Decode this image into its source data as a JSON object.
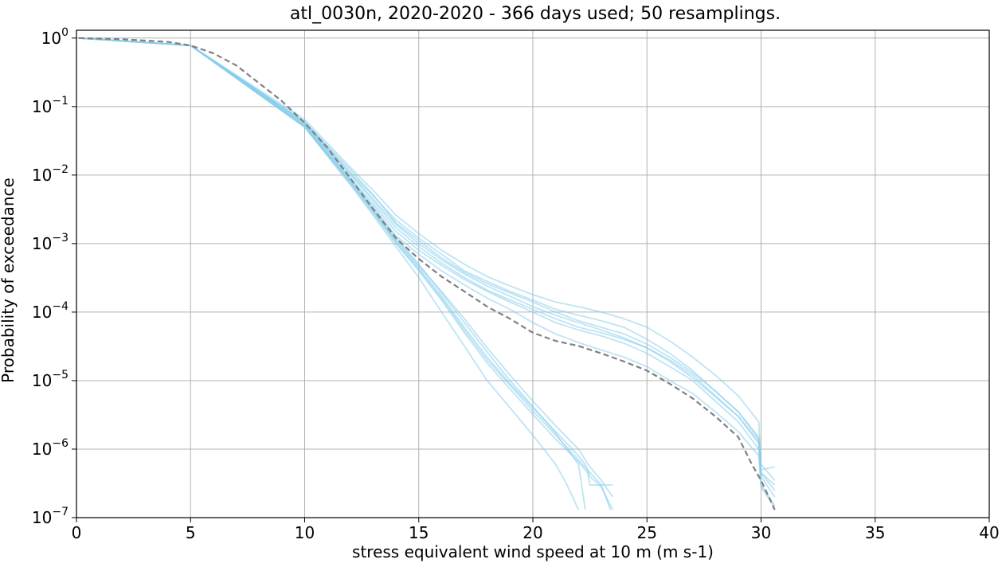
{
  "chart_data": {
    "type": "line",
    "title": "atl_0030n, 2020-2020 - 366 days used; 50 resamplings.",
    "xlabel": "stress equivalent wind speed at 10 m (m s-1)",
    "ylabel": "Probability of exceedance",
    "xlim": [
      0,
      40
    ],
    "ylim": [
      1e-07,
      1.3
    ],
    "yscale": "log",
    "grid": true,
    "x_ticks": [
      0,
      5,
      10,
      15,
      20,
      25,
      30,
      35,
      40
    ],
    "x_tick_labels": [
      "0",
      "5",
      "10",
      "15",
      "20",
      "25",
      "30",
      "35",
      "40"
    ],
    "y_ticks": [
      {
        "value": 1.0,
        "base": "10",
        "exp": "0"
      },
      {
        "value": 0.1,
        "base": "10",
        "exp": "−1"
      },
      {
        "value": 0.01,
        "base": "10",
        "exp": "−2"
      },
      {
        "value": 0.001,
        "base": "10",
        "exp": "−3"
      },
      {
        "value": 0.0001,
        "base": "10",
        "exp": "−4"
      },
      {
        "value": 1e-05,
        "base": "10",
        "exp": "−5"
      },
      {
        "value": 1e-06,
        "base": "10",
        "exp": "−6"
      },
      {
        "value": 1e-07,
        "base": "10",
        "exp": "−7"
      }
    ],
    "colors": {
      "resample": "#87ceeb",
      "mean": "#808080"
    },
    "mean_curve": {
      "style": "dashed",
      "x": [
        0.1,
        2,
        4,
        5,
        6,
        7,
        8,
        9,
        10,
        11,
        12,
        13,
        14,
        15,
        16,
        17,
        18,
        19,
        20,
        21,
        22,
        23,
        24,
        25,
        26,
        27,
        28,
        29,
        29.6,
        30.0,
        30.6
      ],
      "y": [
        1.0,
        0.96,
        0.88,
        0.78,
        0.6,
        0.4,
        0.22,
        0.12,
        0.058,
        0.025,
        0.009,
        0.0032,
        0.0012,
        0.0006,
        0.00033,
        0.0002,
        0.00012,
        8e-05,
        5e-05,
        3.8e-05,
        3.2e-05,
        2.5e-05,
        1.9e-05,
        1.4e-05,
        9e-06,
        5.5e-06,
        3e-06,
        1.5e-06,
        6e-07,
        3.5e-07,
        1.3e-07
      ]
    },
    "series": [
      {
        "x": [
          0.1,
          5,
          10,
          12,
          13,
          14,
          15,
          16,
          17,
          18,
          19,
          20,
          21,
          22,
          23,
          24,
          25,
          26,
          27,
          28,
          29,
          29.9,
          30,
          30.6
        ],
        "y": [
          1.0,
          0.78,
          0.06,
          0.011,
          0.005,
          0.0022,
          0.0012,
          0.0007,
          0.0004,
          0.00028,
          0.0002,
          0.00015,
          0.00011,
          9e-05,
          7.5e-05,
          6e-05,
          4e-05,
          2.5e-05,
          1.4e-05,
          7e-06,
          3.5e-06,
          1.5e-06,
          4.5e-07,
          2.5e-07
        ]
      },
      {
        "x": [
          0.1,
          5,
          10,
          12,
          13,
          14,
          15,
          16,
          17,
          18,
          19,
          20,
          21,
          22,
          23,
          24,
          25,
          26,
          27,
          28,
          29,
          29.9,
          30,
          30.6
        ],
        "y": [
          1.0,
          0.78,
          0.065,
          0.013,
          0.006,
          0.0026,
          0.0014,
          0.0008,
          0.0005,
          0.00033,
          0.00024,
          0.00018,
          0.00014,
          0.00012,
          0.0001,
          8e-05,
          6e-05,
          3.8e-05,
          2.2e-05,
          1.2e-05,
          6e-06,
          2.5e-06,
          6e-07,
          3.5e-07
        ]
      },
      {
        "x": [
          0.1,
          5,
          10,
          12,
          13,
          14,
          15,
          16,
          17,
          18,
          19,
          20,
          21,
          22,
          23,
          24,
          25,
          26,
          27,
          28,
          29,
          29.9,
          30,
          30.6
        ],
        "y": [
          1.0,
          0.78,
          0.055,
          0.009,
          0.0038,
          0.0015,
          0.0008,
          0.00048,
          0.0003,
          0.0002,
          0.00014,
          0.0001,
          7e-05,
          5.5e-05,
          4.5e-05,
          3.5e-05,
          2.5e-05,
          1.6e-05,
          1e-05,
          5e-06,
          2.5e-06,
          1e-06,
          3e-07,
          1.5e-07
        ]
      },
      {
        "x": [
          0.1,
          5,
          10,
          12,
          13,
          14,
          15,
          16,
          17,
          18,
          19,
          20,
          21,
          22,
          23,
          24,
          25,
          26,
          27,
          28,
          29,
          29.9,
          30,
          30.6
        ],
        "y": [
          1.0,
          0.78,
          0.057,
          0.01,
          0.0042,
          0.0017,
          0.0009,
          0.00052,
          0.00032,
          0.00021,
          0.00015,
          0.00011,
          8e-05,
          6e-05,
          5e-05,
          4e-05,
          3e-05,
          2e-05,
          1.2e-05,
          6e-06,
          3e-06,
          1.3e-06,
          4e-07,
          2e-07
        ]
      },
      {
        "x": [
          0.1,
          5,
          10,
          12,
          13,
          14,
          15,
          16,
          17,
          18,
          19,
          20,
          21,
          22,
          23,
          24,
          25,
          26,
          27,
          28,
          29,
          29.9,
          30,
          30.6
        ],
        "y": [
          1.0,
          0.78,
          0.058,
          0.009,
          0.0035,
          0.0013,
          0.0007,
          0.0004,
          0.00025,
          0.00016,
          0.00011,
          7e-05,
          4.8e-05,
          3.6e-05,
          2.8e-05,
          2.2e-05,
          1.6e-05,
          1e-05,
          6.5e-06,
          3.5e-06,
          1.8e-06,
          8e-07,
          2.8e-07,
          1.4e-07
        ]
      },
      {
        "x": [
          0.1,
          5,
          10,
          12,
          13,
          14,
          15,
          16,
          17,
          18,
          19,
          20,
          21,
          22,
          23,
          24,
          25,
          26,
          27,
          28,
          29,
          29.9,
          30,
          30.6
        ],
        "y": [
          1.0,
          0.78,
          0.06,
          0.012,
          0.0052,
          0.002,
          0.0011,
          0.00062,
          0.00038,
          0.00026,
          0.00019,
          0.00014,
          0.0001,
          7.5e-05,
          6e-05,
          4.8e-05,
          3.4e-05,
          2.2e-05,
          1.3e-05,
          7e-06,
          3.5e-06,
          1.4e-06,
          4.5e-07,
          3e-07
        ]
      },
      {
        "x": [
          0.1,
          5,
          10,
          12,
          13,
          14,
          15,
          16,
          17,
          18,
          19,
          20,
          21,
          22,
          22.3,
          22.5,
          23,
          23.5
        ],
        "y": [
          1.0,
          0.78,
          0.052,
          0.008,
          0.003,
          0.0011,
          0.00045,
          0.00017,
          6e-05,
          2.2e-05,
          9e-06,
          4e-06,
          1.8e-06,
          8e-07,
          6e-07,
          4e-07,
          2.8e-07,
          1.3e-07
        ]
      },
      {
        "x": [
          0.1,
          5,
          10,
          12,
          13,
          14,
          15,
          16,
          17,
          18,
          19,
          20,
          21,
          22,
          22.4,
          22.5,
          23.5
        ],
        "y": [
          1.0,
          0.78,
          0.05,
          0.0075,
          0.0028,
          0.001,
          0.0004,
          0.00015,
          5e-05,
          1.8e-05,
          7.5e-06,
          3.2e-06,
          1.4e-06,
          6.5e-07,
          4.5e-07,
          3e-07,
          3e-07
        ]
      },
      {
        "x": [
          0.1,
          5,
          10,
          12,
          13,
          14,
          15,
          16,
          17,
          18,
          19,
          20,
          21,
          22,
          22.5,
          23.0,
          23.5
        ],
        "y": [
          1.0,
          0.78,
          0.053,
          0.0082,
          0.0031,
          0.00115,
          0.00048,
          0.0002,
          8e-05,
          3e-05,
          1.2e-05,
          5e-06,
          2.2e-06,
          1e-06,
          5.5e-07,
          3.5e-07,
          2e-07
        ]
      },
      {
        "x": [
          0.1,
          5,
          10,
          12,
          13,
          14,
          15,
          16,
          17,
          18,
          19,
          20,
          21,
          21.5,
          22.0
        ],
        "y": [
          1.0,
          0.78,
          0.05,
          0.0072,
          0.0026,
          0.0009,
          0.00032,
          0.0001,
          3.2e-05,
          1e-05,
          4e-06,
          1.6e-06,
          6e-07,
          3e-07,
          1.3e-07
        ]
      },
      {
        "x": [
          0.1,
          5,
          10,
          12,
          13,
          14,
          15,
          16,
          17,
          18,
          19,
          20,
          21,
          22,
          22.3
        ],
        "y": [
          1.0,
          0.78,
          0.054,
          0.0085,
          0.0033,
          0.00125,
          0.0005,
          0.00019,
          7e-05,
          2.6e-05,
          1e-05,
          4.2e-06,
          1.7e-06,
          6e-07,
          1.3e-07
        ]
      },
      {
        "x": [
          0.1,
          5,
          10,
          12,
          13,
          14,
          15,
          16,
          17,
          18,
          19,
          20,
          21,
          22,
          23,
          24,
          25,
          26,
          27,
          28,
          29,
          29.9,
          30,
          30.6
        ],
        "y": [
          1.0,
          0.78,
          0.059,
          0.0105,
          0.0045,
          0.0019,
          0.001,
          0.00058,
          0.00036,
          0.00024,
          0.00017,
          0.00012,
          9e-05,
          7e-05,
          5.5e-05,
          4.2e-05,
          3e-05,
          1.9e-05,
          1.1e-05,
          5.8e-06,
          3e-06,
          1.2e-06,
          5e-07,
          5.5e-07
        ]
      },
      {
        "x": [
          0.1,
          5,
          10,
          12,
          13,
          14,
          15,
          16,
          17,
          18,
          19,
          20,
          21,
          22,
          23,
          23.4
        ],
        "y": [
          1.0,
          0.78,
          0.051,
          0.0078,
          0.0029,
          0.00105,
          0.00042,
          0.00016,
          5.5e-05,
          2e-05,
          8.5e-06,
          3.6e-06,
          1.6e-06,
          7e-07,
          3e-07,
          1.3e-07
        ]
      }
    ]
  }
}
